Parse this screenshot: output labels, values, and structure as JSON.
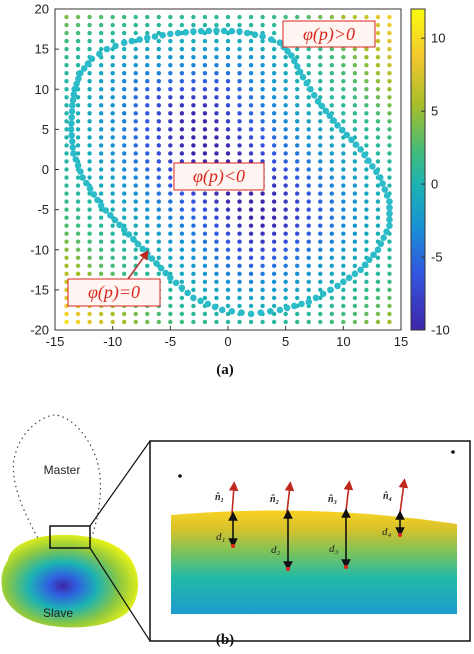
{
  "chart_data": {
    "type": "scatter",
    "x_ticks": [
      "-15",
      "-10",
      "-5",
      "0",
      "5",
      "10",
      "15"
    ],
    "y_ticks": [
      "20",
      "15",
      "10",
      "5",
      "0",
      "-5",
      "-10",
      "-15",
      "-20"
    ],
    "xlim": [
      -15,
      15
    ],
    "ylim": [
      -20,
      20
    ],
    "colorbar_ticks": [
      "10",
      "5",
      "0",
      "-5",
      "-10"
    ],
    "colorbar_range": [
      -10,
      12
    ],
    "grid_spacing": 1,
    "colormap": "parula",
    "boundary_color": "#2cbcc9",
    "annotations": {
      "outside": "φ(p)>0",
      "inside": "φ(p)<0",
      "on_boundary": "φ(p)=0"
    },
    "boundary_points": [
      [
        -13.5,
        8
      ],
      [
        -13.3,
        10
      ],
      [
        -12.8,
        12
      ],
      [
        -11.8,
        13.8
      ],
      [
        -10.5,
        15
      ],
      [
        -9,
        15.8
      ],
      [
        -7,
        16.4
      ],
      [
        -5,
        16.9
      ],
      [
        -3,
        17.2
      ],
      [
        -1,
        17.3
      ],
      [
        1,
        17.2
      ],
      [
        3,
        16.6
      ],
      [
        4.5,
        15.8
      ],
      [
        5.5,
        14.2
      ],
      [
        6.5,
        11.5
      ],
      [
        7.8,
        8.5
      ],
      [
        9.5,
        5.5
      ],
      [
        11.5,
        2.5
      ],
      [
        13.2,
        -1
      ],
      [
        14,
        -4
      ],
      [
        14,
        -7
      ],
      [
        13,
        -10
      ],
      [
        11.5,
        -12.5
      ],
      [
        9.5,
        -14.5
      ],
      [
        7,
        -16.5
      ],
      [
        4.5,
        -17.5
      ],
      [
        2,
        -18
      ],
      [
        -0.5,
        -17.5
      ],
      [
        -3,
        -16
      ],
      [
        -5,
        -13.5
      ],
      [
        -7,
        -10.5
      ],
      [
        -9,
        -7.5
      ],
      [
        -11,
        -4.5
      ],
      [
        -12.6,
        -1
      ],
      [
        -13.4,
        2
      ],
      [
        -13.6,
        5
      ],
      [
        -13.5,
        8
      ]
    ]
  },
  "caption_a": "(a)",
  "caption_b": "(b)",
  "diagram_b": {
    "master_label": "Master",
    "slave_label": "Slave",
    "normals": [
      "n̂₁",
      "n̂₂",
      "n̂₃",
      "n̂₄"
    ],
    "distances": [
      "d₁",
      "d₂",
      "d₃",
      "d₄"
    ]
  }
}
